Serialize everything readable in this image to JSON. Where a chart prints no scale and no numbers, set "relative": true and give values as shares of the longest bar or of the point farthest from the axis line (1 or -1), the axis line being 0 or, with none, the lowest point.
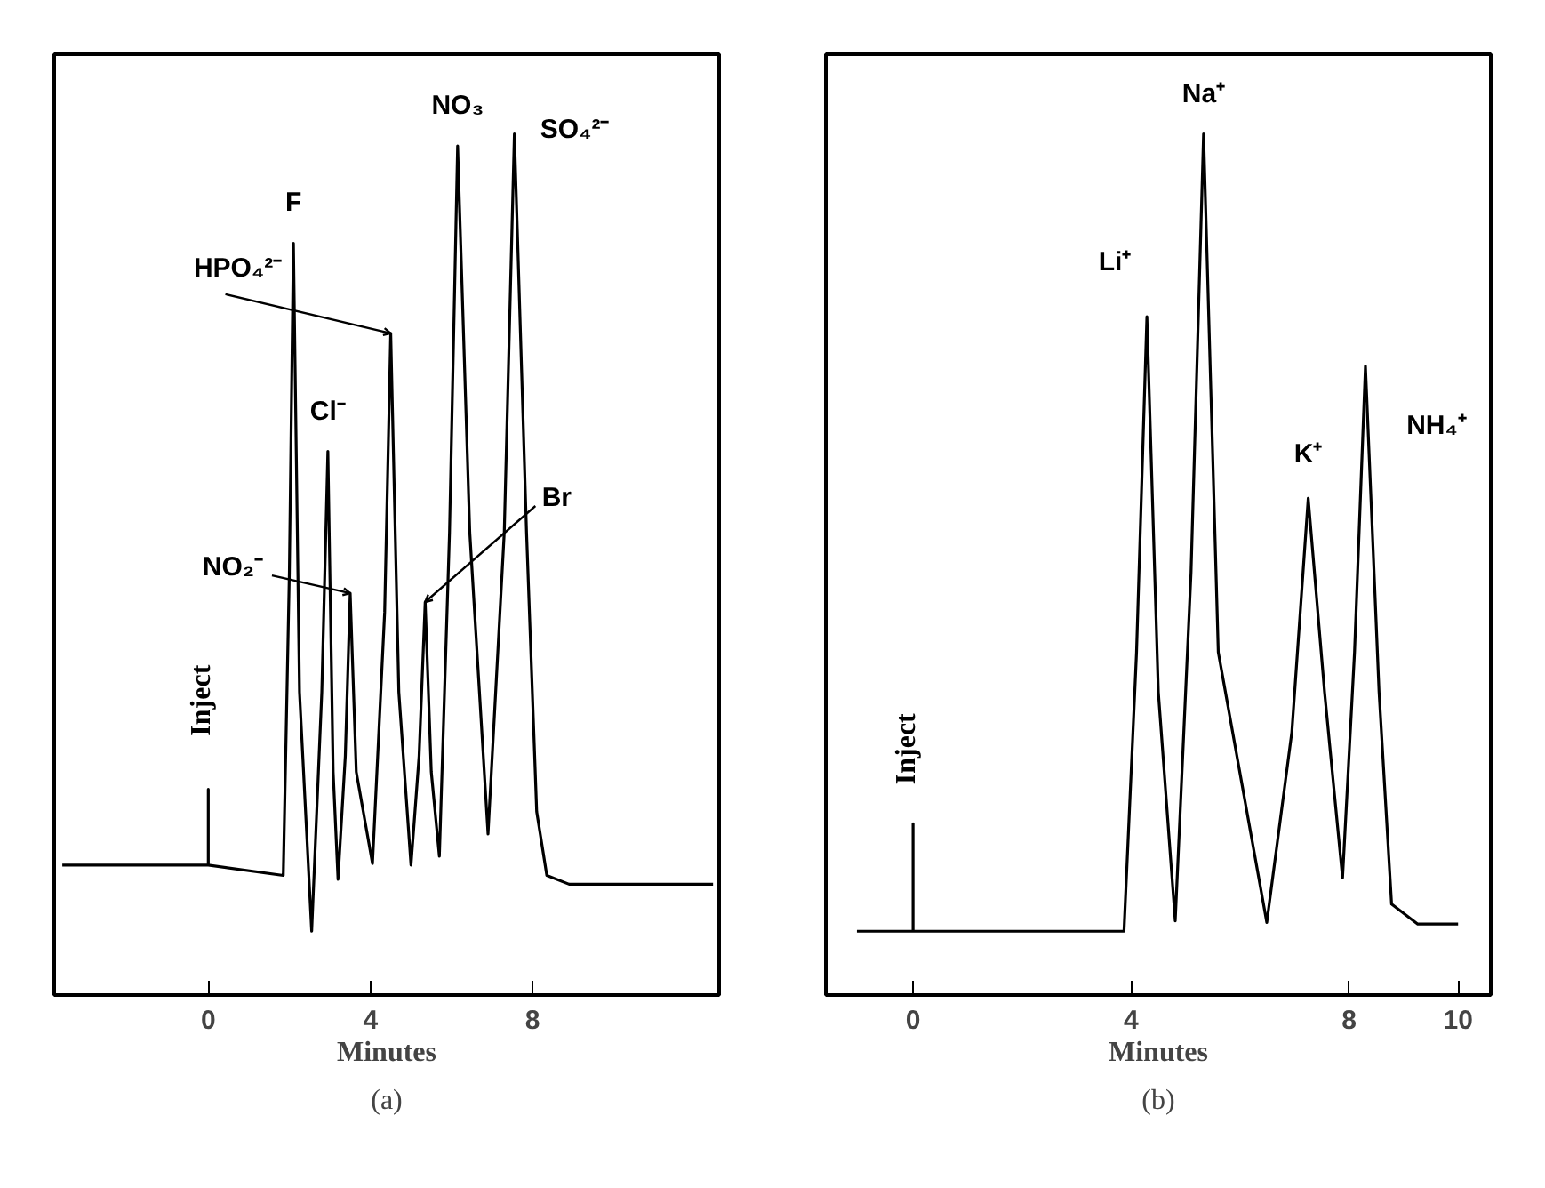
{
  "chart_data": [
    {
      "type": "line",
      "title": "(a)",
      "xlabel": "Minutes",
      "relative": true,
      "xlim": [
        -3.8,
        12.6
      ],
      "xticks": [
        0,
        4,
        8
      ],
      "series": [
        {
          "color": "#000000",
          "x": [
            -3.6,
            0,
            0,
            0,
            1.85,
            2.0,
            2.1,
            2.25,
            2.55,
            2.8,
            2.95,
            3.08,
            3.2,
            3.38,
            3.5,
            3.65,
            4.05,
            4.35,
            4.5,
            4.7,
            5.0,
            5.2,
            5.35,
            5.5,
            5.7,
            5.95,
            6.15,
            6.45,
            6.9,
            7.3,
            7.55,
            7.85,
            8.1,
            8.35,
            8.9,
            12.45
          ],
          "values": [
            0.083,
            0.083,
            0.178,
            0.083,
            0.07,
            0.45,
            0.863,
            0.3,
            0,
            0.3,
            0.602,
            0.2,
            0.065,
            0.22,
            0.424,
            0.2,
            0.085,
            0.4,
            0.75,
            0.3,
            0.083,
            0.22,
            0.413,
            0.2,
            0.094,
            0.5,
            0.985,
            0.5,
            0.122,
            0.5,
            1,
            0.5,
            0.15,
            0.07,
            0.059,
            0.059
          ]
        }
      ],
      "annotations": [
        {
          "text": "F",
          "x": 2.1,
          "y": 0.863
        },
        {
          "text": "Cl⁻",
          "x": 2.95,
          "y": 0.602
        },
        {
          "text": "NO₂⁻",
          "x": 3.5,
          "y": 0.424
        },
        {
          "text": "HPO₄²⁻",
          "x": 4.5,
          "y": 0.75
        },
        {
          "text": "Br",
          "x": 5.35,
          "y": 0.413
        },
        {
          "text": "NO₃",
          "x": 6.15,
          "y": 0.985
        },
        {
          "text": "SO₄²⁻",
          "x": 7.55,
          "y": 1
        },
        {
          "text": "Inject",
          "x": 0,
          "y": 0.178
        }
      ]
    },
    {
      "type": "line",
      "title": "(b)",
      "xlabel": "Minutes",
      "relative": true,
      "xlim": [
        -1.6,
        10.6
      ],
      "xticks": [
        0,
        4,
        8,
        10
      ],
      "series": [
        {
          "color": "#000000",
          "x": [
            -1.03,
            0,
            0,
            0,
            3.87,
            4.1,
            4.29,
            4.5,
            4.81,
            5.1,
            5.33,
            5.6,
            6.49,
            6.95,
            7.25,
            7.55,
            7.88,
            8.1,
            8.3,
            8.55,
            8.78,
            9.26,
            10.0
          ],
          "values": [
            0,
            0,
            0.135,
            0,
            0,
            0.35,
            0.771,
            0.3,
            0.013,
            0.45,
            1,
            0.35,
            0.011,
            0.25,
            0.543,
            0.3,
            0.067,
            0.35,
            0.709,
            0.3,
            0.034,
            0.009,
            0.009
          ]
        }
      ],
      "annotations": [
        {
          "text": "Li⁺",
          "x": 4.29,
          "y": 0.771
        },
        {
          "text": "Na⁺",
          "x": 5.33,
          "y": 1
        },
        {
          "text": "K⁺",
          "x": 7.25,
          "y": 0.543
        },
        {
          "text": "NH₄⁺",
          "x": 8.3,
          "y": 0.709
        },
        {
          "text": "Inject",
          "x": 0,
          "y": 0.135
        }
      ]
    }
  ]
}
